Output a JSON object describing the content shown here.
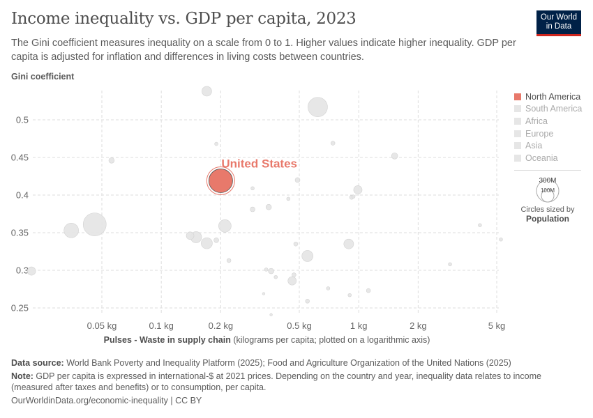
{
  "header": {
    "title": "Income inequality vs. GDP per capita, 2023",
    "subtitle": "The Gini coefficient measures inequality on a scale from 0 to 1. Higher values indicate higher inequality. GDP per capita is adjusted for inflation and differences in living costs between countries.",
    "logo": "Our World in Data"
  },
  "legend": {
    "items": [
      {
        "label": "North America",
        "color": "#e8796b",
        "active": true
      },
      {
        "label": "South America",
        "color": "#e6e6e6",
        "active": false
      },
      {
        "label": "Africa",
        "color": "#e6e6e6",
        "active": false
      },
      {
        "label": "Europe",
        "color": "#e6e6e6",
        "active": false
      },
      {
        "label": "Asia",
        "color": "#e6e6e6",
        "active": false
      },
      {
        "label": "Oceania",
        "color": "#e6e6e6",
        "active": false
      }
    ],
    "size_large": "300M",
    "size_small": "100M",
    "size_caption": "Circles sized by",
    "size_variable": "Population"
  },
  "chart_data": {
    "type": "scatter",
    "title": "Income inequality vs. GDP per capita, 2023",
    "ylabel": "Gini coefficient",
    "xlabel_bold": "Pulses - Waste in supply chain",
    "xlabel_rest": " (kilograms per capita; plotted on a logarithmic axis)",
    "x_scale": "log",
    "xlim": [
      0.021,
      5.2
    ],
    "ylim": [
      0.24,
      0.542
    ],
    "grid": true,
    "legend_placement": "right",
    "x_ticks": [
      {
        "v": 0.05,
        "label": "0.05 kg"
      },
      {
        "v": 0.1,
        "label": "0.1 kg"
      },
      {
        "v": 0.2,
        "label": "0.2 kg"
      },
      {
        "v": 0.5,
        "label": "0.5 kg"
      },
      {
        "v": 1,
        "label": "1 kg"
      },
      {
        "v": 2,
        "label": "2 kg"
      },
      {
        "v": 5,
        "label": "5 kg"
      }
    ],
    "y_ticks": [
      {
        "v": 0.25,
        "label": "0.25"
      },
      {
        "v": 0.3,
        "label": "0.3"
      },
      {
        "v": 0.35,
        "label": "0.35"
      },
      {
        "v": 0.4,
        "label": "0.4"
      },
      {
        "v": 0.45,
        "label": "0.45"
      },
      {
        "v": 0.5,
        "label": "0.5"
      }
    ],
    "highlight": {
      "label": "United States",
      "x": 0.2,
      "y": 0.419,
      "pop": 335,
      "color": "#e8796b"
    },
    "points": [
      {
        "x": 0.17,
        "y": 0.538,
        "pop": 57
      },
      {
        "x": 0.62,
        "y": 0.517,
        "pop": 227
      },
      {
        "x": 0.19,
        "y": 0.468,
        "pop": 7
      },
      {
        "x": 0.056,
        "y": 0.446,
        "pop": 18
      },
      {
        "x": 1.52,
        "y": 0.452,
        "pop": 23
      },
      {
        "x": 0.74,
        "y": 0.469,
        "pop": 10
      },
      {
        "x": 0.49,
        "y": 0.42,
        "pop": 14
      },
      {
        "x": 0.29,
        "y": 0.409,
        "pop": 7
      },
      {
        "x": 0.99,
        "y": 0.407,
        "pop": 42
      },
      {
        "x": 0.92,
        "y": 0.397,
        "pop": 10
      },
      {
        "x": 0.94,
        "y": 0.398,
        "pop": 7
      },
      {
        "x": 0.44,
        "y": 0.395,
        "pop": 7
      },
      {
        "x": 0.35,
        "y": 0.384,
        "pop": 18
      },
      {
        "x": 0.29,
        "y": 0.381,
        "pop": 14
      },
      {
        "x": 0.21,
        "y": 0.359,
        "pop": 94
      },
      {
        "x": 0.046,
        "y": 0.361,
        "pop": 315
      },
      {
        "x": 0.035,
        "y": 0.353,
        "pop": 127
      },
      {
        "x": 0.14,
        "y": 0.346,
        "pop": 35
      },
      {
        "x": 0.15,
        "y": 0.344,
        "pop": 74
      },
      {
        "x": 0.17,
        "y": 0.336,
        "pop": 74
      },
      {
        "x": 0.19,
        "y": 0.34,
        "pop": 14
      },
      {
        "x": 0.48,
        "y": 0.335,
        "pop": 10
      },
      {
        "x": 0.89,
        "y": 0.335,
        "pop": 57
      },
      {
        "x": 0.55,
        "y": 0.319,
        "pop": 74
      },
      {
        "x": 0.22,
        "y": 0.313,
        "pop": 10
      },
      {
        "x": 4.11,
        "y": 0.36,
        "pop": 7
      },
      {
        "x": 5.25,
        "y": 0.341,
        "pop": 7
      },
      {
        "x": 0.022,
        "y": 0.299,
        "pop": 42
      },
      {
        "x": 0.34,
        "y": 0.301,
        "pop": 7
      },
      {
        "x": 0.36,
        "y": 0.299,
        "pop": 18
      },
      {
        "x": 0.38,
        "y": 0.291,
        "pop": 7
      },
      {
        "x": 0.47,
        "y": 0.294,
        "pop": 10
      },
      {
        "x": 0.46,
        "y": 0.286,
        "pop": 42
      },
      {
        "x": 2.9,
        "y": 0.308,
        "pop": 7
      },
      {
        "x": 0.7,
        "y": 0.276,
        "pop": 7
      },
      {
        "x": 1.12,
        "y": 0.273,
        "pop": 10
      },
      {
        "x": 0.9,
        "y": 0.267,
        "pop": 7
      },
      {
        "x": 0.33,
        "y": 0.269,
        "pop": 4
      },
      {
        "x": 0.55,
        "y": 0.259,
        "pop": 10
      },
      {
        "x": 0.36,
        "y": 0.241,
        "pop": 4
      }
    ]
  },
  "footer": {
    "source_label": "Data source:",
    "source": " World Bank Poverty and Inequality Platform (2025); Food and Agriculture Organization of the United Nations (2025)",
    "note_label": "Note:",
    "note": " GDP per capita is expressed in international-$ at 2021 prices. Depending on the country and year, inequality data relates to income (measured after taxes and benefits) or to consumption, per capita.",
    "url": "OurWorldinData.org/economic-inequality | CC BY"
  }
}
